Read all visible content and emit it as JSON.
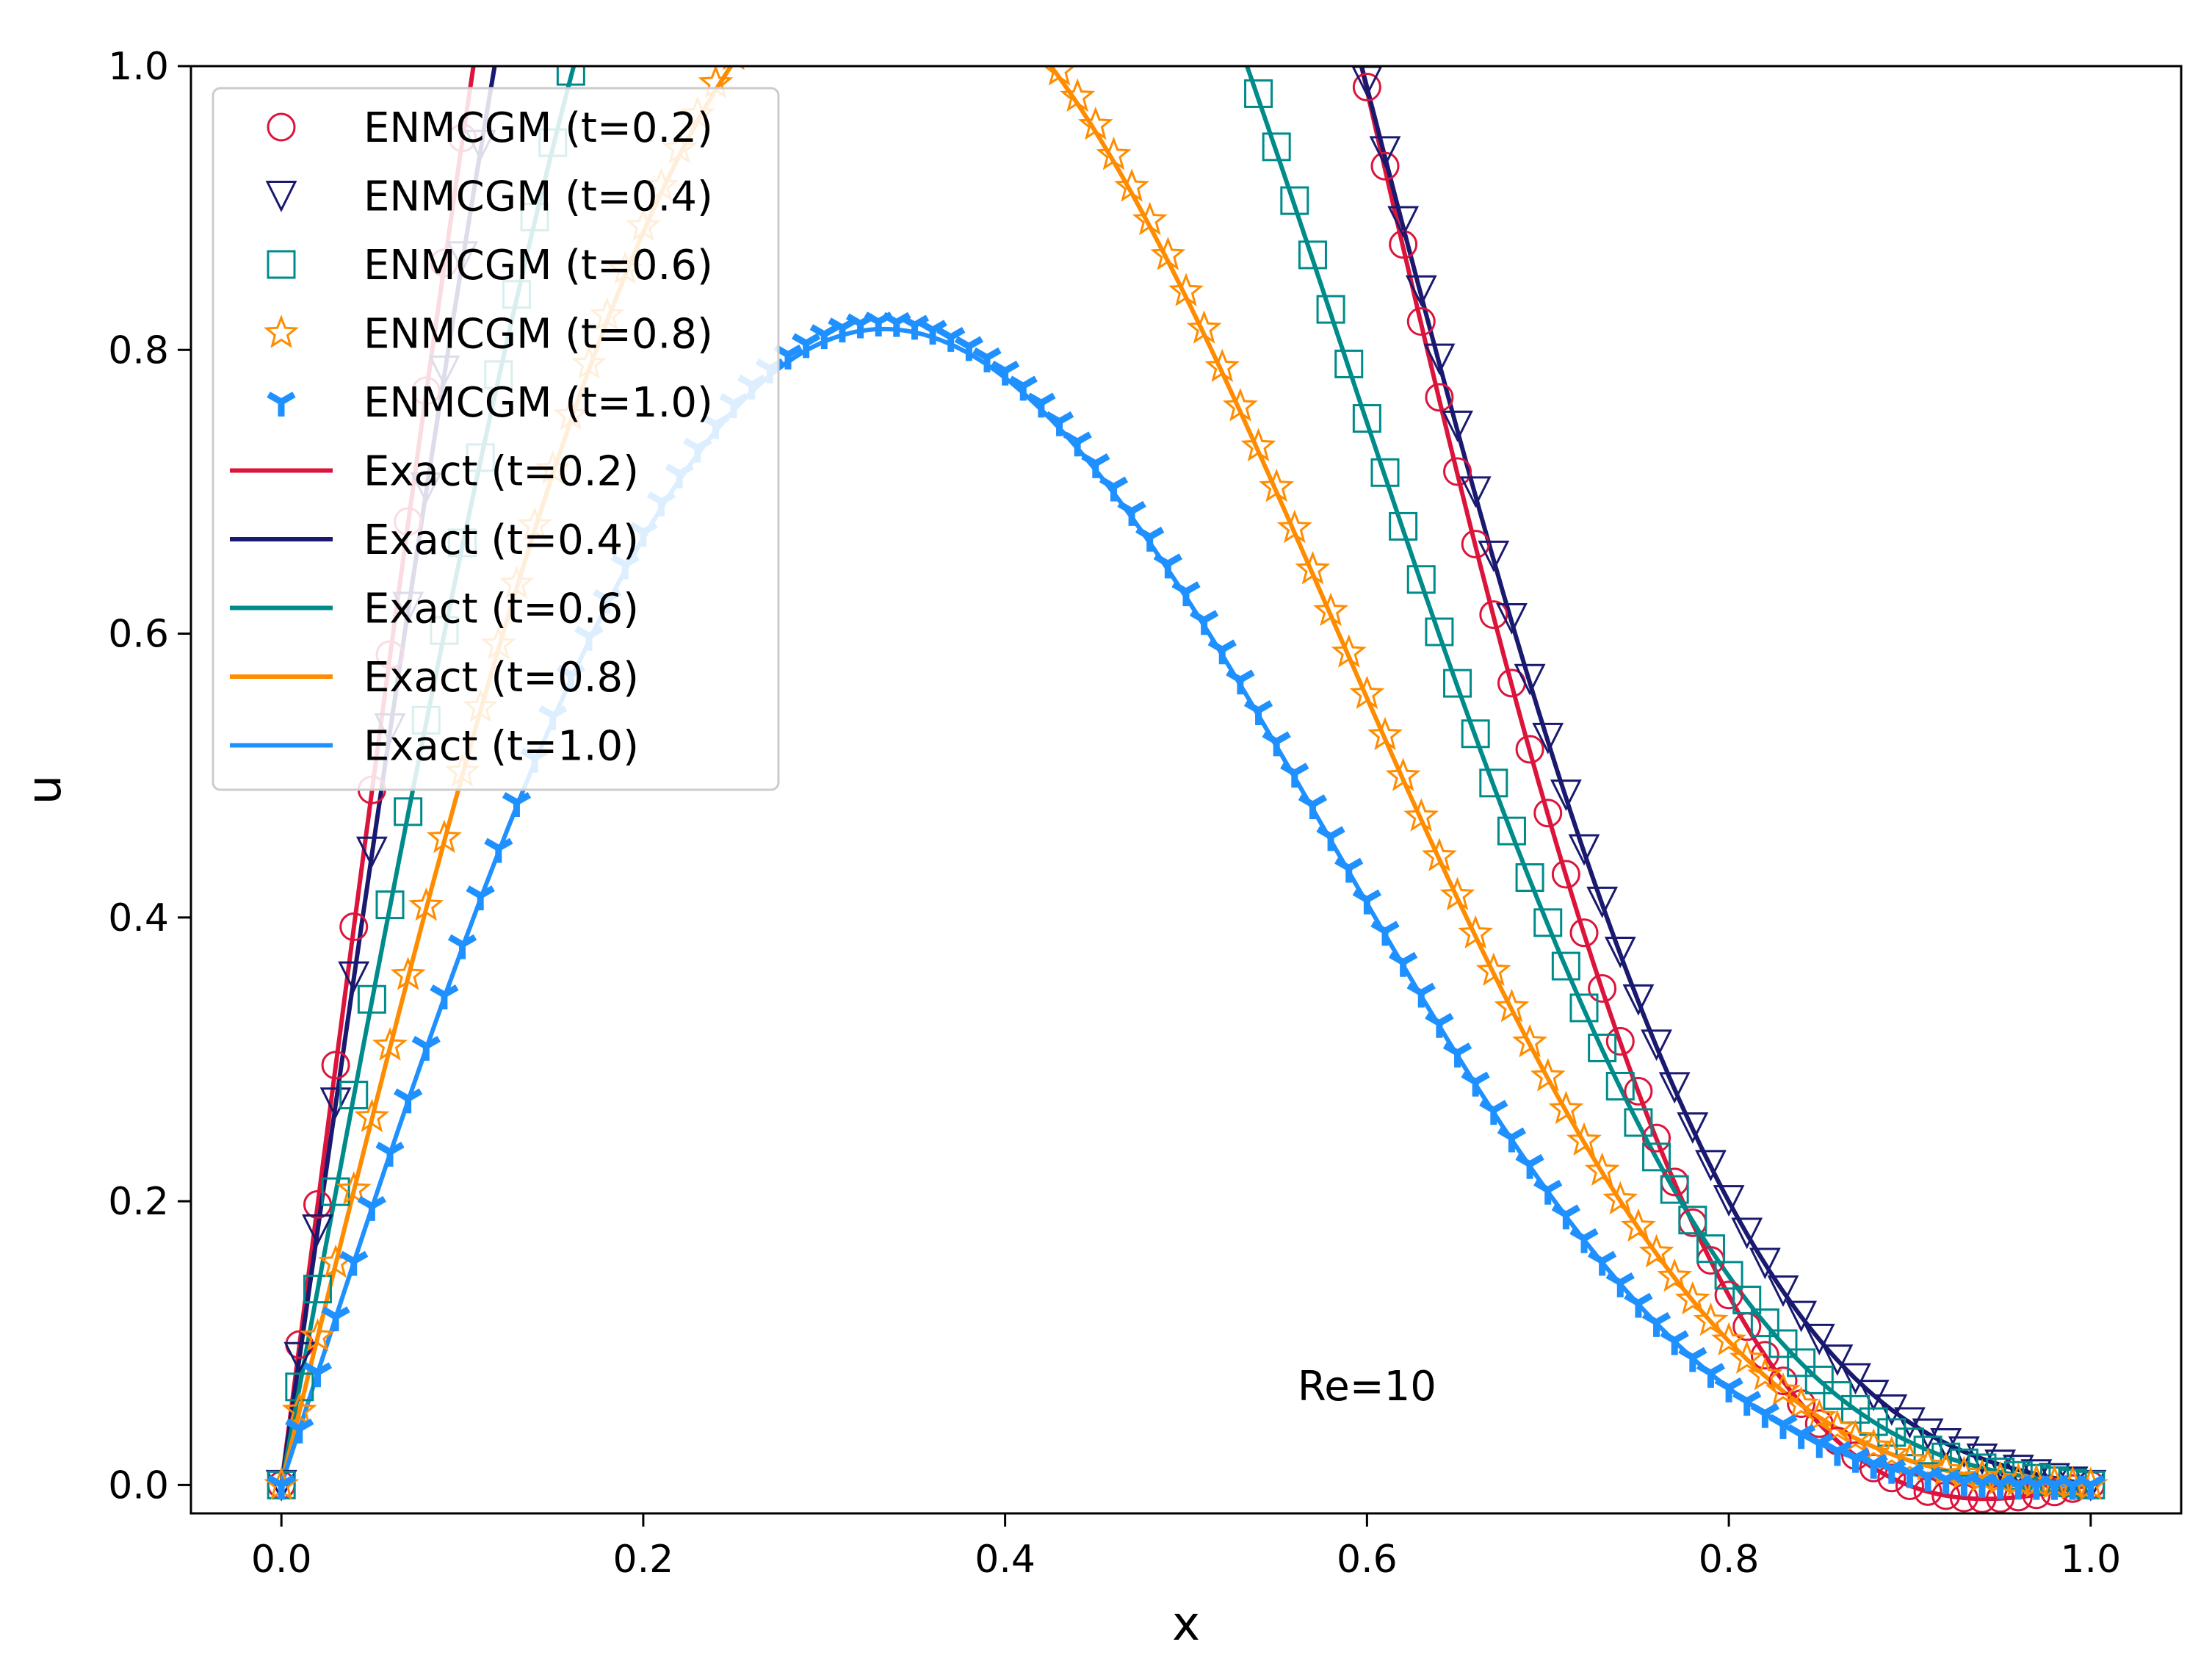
{
  "chart_data": {
    "type": "line",
    "xlabel": "x",
    "ylabel": "u",
    "xlim": [
      -0.05,
      1.05
    ],
    "ylim": [
      -0.02,
      1.0
    ],
    "xticks": [
      "0.0",
      "0.2",
      "0.4",
      "0.6",
      "0.8",
      "1.0"
    ],
    "yticks": [
      "0.0",
      "0.2",
      "0.4",
      "0.6",
      "0.8",
      "1.0"
    ],
    "grid": false,
    "legend_position": "top-left",
    "annotation": {
      "text": "Re=10",
      "x": 0.6,
      "y": 0.07
    },
    "series": [
      {
        "name": "ENMCGM (t=0.2)",
        "kind": "markers",
        "marker": "circle",
        "color": "#dc143c",
        "t": 0.2,
        "peak_u": 0.82,
        "peak_x": 0.63
      },
      {
        "name": "ENMCGM (t=0.4)",
        "kind": "markers",
        "marker": "triangle-down",
        "color": "#191970",
        "t": 0.4,
        "peak_u": 0.655,
        "peak_x": 0.67
      },
      {
        "name": "ENMCGM (t=0.6)",
        "kind": "markers",
        "marker": "square",
        "color": "#008b8b",
        "t": 0.6,
        "peak_u": 0.512,
        "peak_x": 0.665
      },
      {
        "name": "ENMCGM (t=0.8)",
        "kind": "markers",
        "marker": "star",
        "color": "#ff8c00",
        "t": 0.8,
        "peak_u": 0.402,
        "peak_x": 0.655
      },
      {
        "name": "ENMCGM (t=1.0)",
        "kind": "markers",
        "marker": "tri-down",
        "color": "#1e90ff",
        "t": 1.0,
        "peak_u": 0.315,
        "peak_x": 0.645
      },
      {
        "name": "Exact (t=0.2)",
        "kind": "line",
        "color": "#dc143c",
        "t": 0.2,
        "peak_u": 0.818,
        "peak_x": 0.63
      },
      {
        "name": "Exact (t=0.4)",
        "kind": "line",
        "color": "#191970",
        "t": 0.4,
        "peak_u": 0.652,
        "peak_x": 0.67
      },
      {
        "name": "Exact (t=0.6)",
        "kind": "line",
        "color": "#008b8b",
        "t": 0.6,
        "peak_u": 0.51,
        "peak_x": 0.665
      },
      {
        "name": "Exact (t=0.8)",
        "kind": "line",
        "color": "#ff8c00",
        "t": 0.8,
        "peak_u": 0.4,
        "peak_x": 0.655
      },
      {
        "name": "Exact (t=1.0)",
        "kind": "line",
        "color": "#1e90ff",
        "t": 1.0,
        "peak_u": 0.313,
        "peak_x": 0.645
      }
    ]
  }
}
